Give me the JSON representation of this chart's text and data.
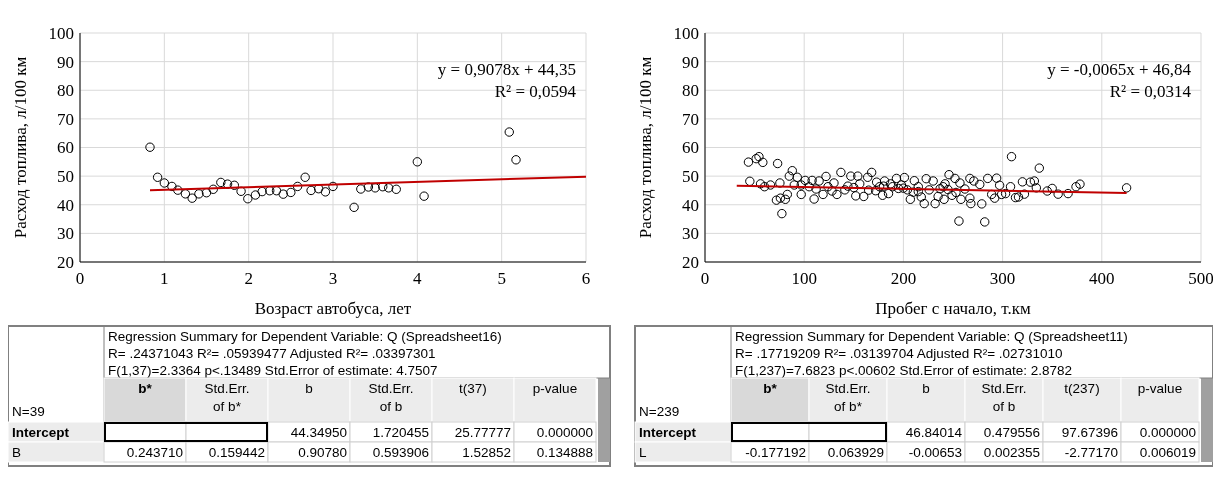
{
  "chart_data": [
    {
      "type": "scatter",
      "xlabel": "Возраст автобуса, лет",
      "ylabel": "Расход топлива, л/100 км",
      "xlim": [
        0,
        6
      ],
      "xticks": [
        0,
        1,
        2,
        3,
        4,
        5,
        6
      ],
      "ylim": [
        20,
        100
      ],
      "yticks": [
        20,
        30,
        40,
        50,
        60,
        70,
        80,
        90,
        100
      ],
      "grid": true,
      "annotations": [
        "y = 0,9078x + 44,35",
        "R² = 0,0594"
      ],
      "series": [
        {
          "type": "scatter",
          "marker": "circle",
          "color": "#000000",
          "x": [
            0.83,
            0.92,
            1.0,
            1.09,
            1.16,
            1.25,
            1.33,
            1.41,
            1.5,
            1.58,
            1.67,
            1.75,
            1.83,
            1.91,
            1.99,
            2.08,
            2.16,
            2.25,
            2.33,
            2.41,
            2.5,
            2.58,
            2.67,
            2.74,
            2.83,
            2.91,
            3.0,
            3.25,
            3.33,
            3.42,
            3.5,
            3.59,
            3.66,
            3.75,
            4.0,
            4.08,
            5.09,
            5.17
          ],
          "values": [
            60.1,
            49.6,
            47.6,
            46.4,
            45.1,
            43.8,
            42.3,
            43.8,
            44.2,
            45.4,
            47.8,
            47.2,
            46.8,
            44.7,
            42.1,
            43.4,
            44.6,
            44.9,
            44.9,
            43.7,
            44.3,
            46.4,
            49.6,
            45.0,
            45.6,
            44.5,
            46.4,
            39.1,
            45.5,
            46.2,
            45.9,
            46.3,
            45.9,
            45.4,
            55.0,
            43.0,
            65.4,
            55.7
          ]
        },
        {
          "type": "line",
          "color": "#c00000",
          "x": [
            0.83,
            6
          ],
          "values": [
            45.1,
            49.8
          ]
        }
      ]
    },
    {
      "type": "scatter",
      "xlabel": "Пробег с начало, т.км",
      "ylabel": "Расход топлива, л/100 км",
      "xlim": [
        0,
        500
      ],
      "xticks": [
        0,
        100,
        200,
        300,
        400,
        500
      ],
      "ylim": [
        20,
        100
      ],
      "yticks": [
        20,
        30,
        40,
        50,
        60,
        70,
        80,
        90,
        100
      ],
      "grid": true,
      "annotations": [
        "y = -0,0065x + 46,84",
        "R² = 0,0314"
      ],
      "series": [
        {
          "type": "scatter",
          "marker": "circle",
          "color": "#000000",
          "x": [
            43.8,
            45.2,
            51.6,
            54.4,
            58.3,
            73.2,
            77.5,
            309,
            337,
            256,
            282,
            425,
            378,
            374,
            366,
            356,
            350,
            345,
            334,
            332,
            328,
            322,
            320,
            316,
            313,
            308,
            303,
            299,
            297,
            294,
            292,
            289,
            285,
            279,
            277,
            271,
            268,
            267,
            267,
            262,
            258,
            257,
            252,
            249,
            246,
            242,
            241,
            237,
            235,
            232,
            230,
            223,
            221,
            218,
            215,
            211,
            207,
            204,
            201,
            198,
            193,
            189,
            185,
            181,
            179,
            176,
            173,
            168,
            164,
            160,
            154,
            152,
            147,
            144,
            137,
            133,
            130,
            122,
            119,
            115,
            110,
            108,
            105,
            101,
            97,
            93,
            90,
            88,
            85,
            83,
            81,
            76,
            75.5,
            72,
            66,
            60,
            56,
            97,
            124,
            141,
            156,
            172,
            187,
            195,
            210,
            226,
            240,
            253,
            112,
            128,
            150,
            165,
            180,
            200,
            215,
            245
          ],
          "values": [
            54.9,
            48.2,
            56.1,
            56.8,
            54.8,
            54.4,
            36.9,
            56.8,
            52.8,
            34.3,
            34.0,
            45.9,
            47.2,
            46.3,
            43.9,
            43.7,
            45.7,
            44.8,
            45.9,
            48.3,
            47.9,
            43.7,
            48.0,
            42.7,
            42.5,
            46.3,
            43.9,
            43.6,
            46.8,
            49.3,
            42.3,
            43.6,
            49.2,
            40.3,
            47.1,
            48.3,
            40.4,
            42.3,
            49.2,
            45.5,
            41.9,
            47.6,
            49.2,
            43.3,
            50.5,
            47.3,
            41.9,
            45.6,
            42.9,
            40.4,
            48.3,
            49.1,
            40.4,
            42.7,
            46.3,
            48.4,
            41.9,
            45.2,
            49.5,
            46.9,
            49.2,
            46.3,
            43.9,
            48.3,
            43.3,
            46.3,
            47.9,
            51.3,
            49.6,
            42.9,
            50.0,
            43.1,
            50.0,
            46.5,
            51.3,
            43.6,
            47.6,
            49.9,
            43.6,
            48.3,
            42.0,
            48.5,
            46.3,
            48.5,
            43.6,
            49.6,
            46.9,
            51.9,
            50.0,
            43.6,
            41.9,
            42.3,
            47.6,
            41.6,
            46.9,
            46.3,
            47.3,
            46.9,
            46.3,
            45.2,
            47.3,
            44.9,
            47.3,
            45.7,
            44.4,
            45.2,
            46.3,
            44.3,
            45.5,
            44.8,
            46.0,
            45.1,
            46.5,
            45.8,
            44.6,
            45.3
          ]
        },
        {
          "type": "line",
          "color": "#c00000",
          "x": [
            32,
            425
          ],
          "values": [
            46.6,
            44.1
          ]
        }
      ]
    },
    {
      "type": "other",
      "title": "Regression Summary for Dependent Variable: Q (Spreadsheet16)",
      "annotations": [
        "R= .24371043 R²= .05939477 Adjusted R²= .03397301",
        "F(1,37)=2.3364 p<.13489 Std.Error of estimate: 4.7507",
        "N=39"
      ],
      "categories": [
        "b*",
        "Std.Err.\nof b*",
        "b",
        "Std.Err.\nof b",
        "t(37)",
        "p-value"
      ],
      "y_categories": [
        "Intercept",
        "B"
      ],
      "cell_labels": [
        [
          null,
          null,
          "44.34950",
          "1.720455",
          "25.77777",
          "0.000000"
        ],
        [
          "0.243710",
          "0.159442",
          "0.90780",
          "0.593906",
          "1.52852",
          "0.134888"
        ]
      ]
    },
    {
      "type": "other",
      "title": "Regression Summary for Dependent Variable: Q (Spreadsheet11)",
      "annotations": [
        "R= .17719209 R²= .03139704 Adjusted R²= .02731010",
        "F(1,237)=7.6823 p<.00602 Std.Error of estimate: 2.8782",
        "N=239"
      ],
      "categories": [
        "b*",
        "Std.Err.\nof b*",
        "b",
        "Std.Err.\nof b",
        "t(237)",
        "p-value"
      ],
      "y_categories": [
        "Intercept",
        "L"
      ],
      "cell_labels": [
        [
          null,
          null,
          "46.84014",
          "0.479556",
          "97.67396",
          "0.000000"
        ],
        [
          "-0.177192",
          "0.063929",
          "-0.00653",
          "0.002355",
          "-2.77170",
          "0.006019"
        ]
      ]
    }
  ]
}
